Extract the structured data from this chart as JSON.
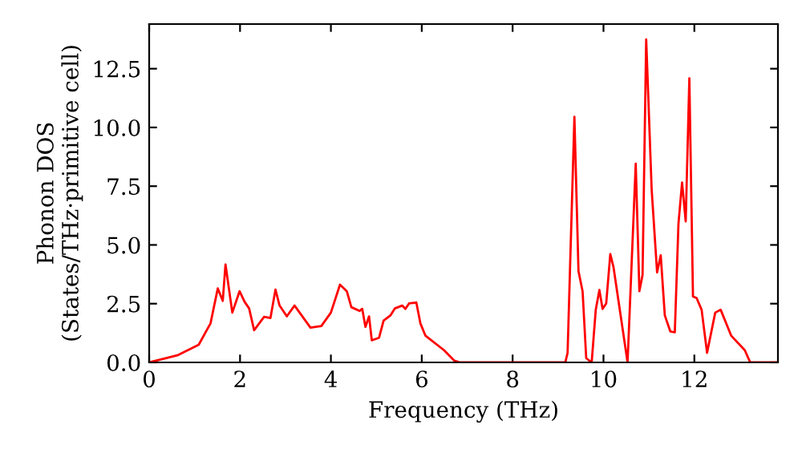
{
  "chart_data": {
    "type": "line",
    "xlabel": "Frequency (THz)",
    "ylabel": "Phonon DOS\n(States/THz·primitive cell)",
    "xlim": [
      0,
      13.84
    ],
    "ylim": [
      0,
      14.4
    ],
    "xticks": [
      0,
      2,
      4,
      6,
      8,
      10,
      12
    ],
    "yticks": [
      {
        "value": 0,
        "label": "0.0"
      },
      2.5,
      {
        "value": 5,
        "label": "5.0"
      },
      7.5,
      {
        "value": 10,
        "label": "10.0"
      },
      12.5
    ],
    "grid": false,
    "marker": "none",
    "line_style": "solid",
    "series": [
      {
        "color": "#ff0000",
        "x": [
          0,
          0.62,
          1.09,
          1.35,
          1.51,
          1.62,
          1.68,
          1.83,
          1.99,
          2.1,
          2.2,
          2.31,
          2.53,
          2.67,
          2.78,
          2.87,
          3.03,
          3.2,
          3.55,
          3.79,
          4.0,
          4.2,
          4.35,
          4.45,
          4.63,
          4.69,
          4.76,
          4.84,
          4.9,
          5.06,
          5.16,
          5.31,
          5.41,
          5.57,
          5.64,
          5.72,
          5.88,
          5.97,
          6.08,
          6.49,
          6.72,
          6.84,
          9.16,
          9.21,
          9.36,
          9.45,
          9.54,
          9.62,
          9.74,
          9.83,
          9.91,
          9.98,
          10.06,
          10.15,
          10.22,
          10.53,
          10.71,
          10.79,
          10.86,
          10.94,
          11.06,
          11.18,
          11.26,
          11.35,
          11.47,
          11.57,
          11.65,
          11.73,
          11.81,
          11.89,
          11.97,
          12.05,
          12.16,
          12.28,
          12.46,
          12.58,
          12.81,
          13.11,
          13.23,
          13.84
        ],
        "values": [
          0,
          0.3,
          0.75,
          1.66,
          3.15,
          2.62,
          4.17,
          2.12,
          3.03,
          2.58,
          2.3,
          1.37,
          1.94,
          1.89,
          3.1,
          2.42,
          1.96,
          2.42,
          1.48,
          1.55,
          2.12,
          3.31,
          3.03,
          2.35,
          2.19,
          2.28,
          1.51,
          1.96,
          0.94,
          1.05,
          1.78,
          2.0,
          2.3,
          2.42,
          2.28,
          2.51,
          2.55,
          1.66,
          1.14,
          0.52,
          0.07,
          0,
          0,
          0.41,
          10.45,
          3.88,
          3.03,
          0.18,
          0,
          2.24,
          3.08,
          2.28,
          2.51,
          4.61,
          4.06,
          0,
          8.46,
          3.03,
          3.72,
          13.75,
          7.37,
          3.83,
          4.56,
          2.0,
          1.32,
          1.28,
          5.89,
          7.66,
          6.0,
          12.09,
          2.81,
          2.74,
          2.24,
          0.41,
          2.12,
          2.24,
          1.14,
          0.52,
          0,
          0
        ]
      }
    ]
  }
}
